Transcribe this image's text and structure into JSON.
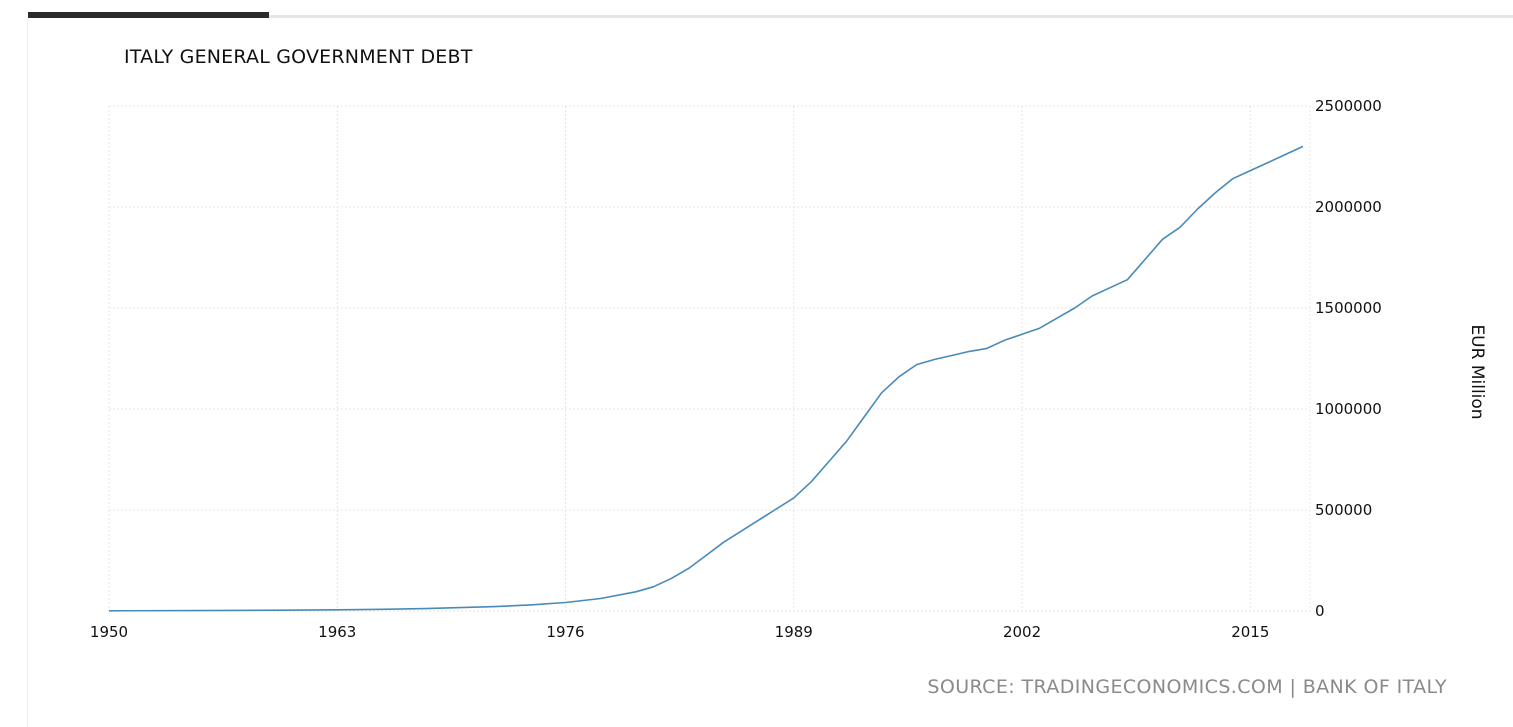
{
  "chart_data": {
    "type": "line",
    "title": "ITALY GENERAL GOVERNMENT DEBT",
    "ylabel": "EUR Million",
    "xlim": [
      1950,
      2018.4
    ],
    "ylim": [
      0,
      2500000
    ],
    "x_ticks": [
      1950,
      1963,
      1976,
      1989,
      2002,
      2015
    ],
    "y_ticks": [
      0,
      500000,
      1000000,
      1500000,
      2000000,
      2500000
    ],
    "y_tick_labels": [
      "0",
      "500000",
      "1000000",
      "1500000",
      "2000000",
      "2500000"
    ],
    "grid": true,
    "series": [
      {
        "color": "#4a8ab8",
        "x": [
          1950,
          1955,
          1960,
          1963,
          1966,
          1968,
          1970,
          1972,
          1974,
          1976,
          1978,
          1980,
          1981,
          1982,
          1983,
          1984,
          1985,
          1986,
          1987,
          1988,
          1989,
          1990,
          1991,
          1992,
          1993,
          1994,
          1995,
          1996,
          1997,
          1998,
          1999,
          2000,
          2001,
          2002,
          2003,
          2004,
          2005,
          2006,
          2007,
          2008,
          2009,
          2010,
          2011,
          2012,
          2013,
          2014,
          2015,
          2016,
          2017,
          2018
        ],
        "y": [
          1000,
          2000,
          4000,
          6000,
          9000,
          12000,
          17000,
          22000,
          30000,
          42000,
          62000,
          95000,
          120000,
          160000,
          210000,
          275000,
          340000,
          395000,
          450000,
          505000,
          560000,
          640000,
          740000,
          840000,
          960000,
          1080000,
          1160000,
          1220000,
          1245000,
          1265000,
          1285000,
          1300000,
          1340000,
          1370000,
          1400000,
          1450000,
          1500000,
          1560000,
          1600000,
          1640000,
          1740000,
          1840000,
          1900000,
          1990000,
          2070000,
          2140000,
          2180000,
          2220000,
          2260000,
          2300000
        ]
      }
    ]
  },
  "source_text": "SOURCE: TRADINGECONOMICS.COM | BANK OF ITALY"
}
